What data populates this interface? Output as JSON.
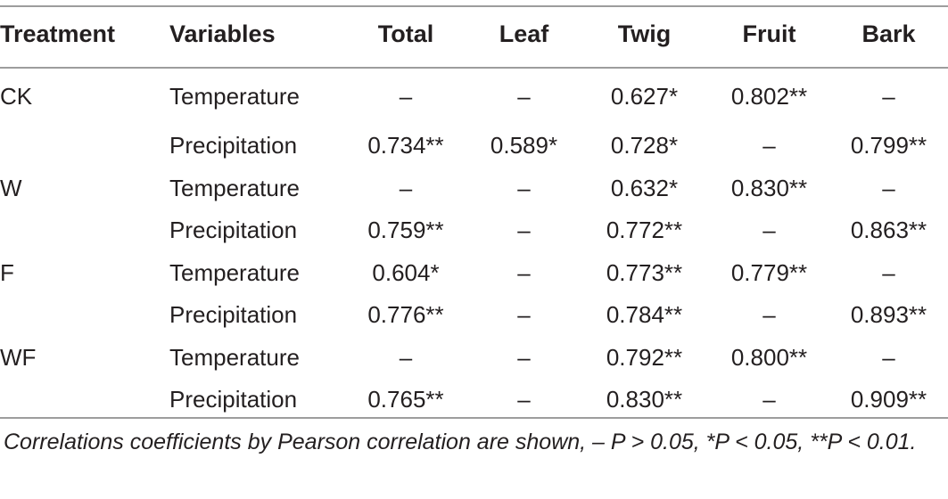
{
  "table": {
    "headers": [
      "Treatment",
      "Variables",
      "Total",
      "Leaf",
      "Twig",
      "Fruit",
      "Bark"
    ],
    "rows": [
      [
        "CK",
        "Temperature",
        "–",
        "–",
        "0.627*",
        "0.802**",
        "–"
      ],
      [
        "",
        "Precipitation",
        "0.734**",
        "0.589*",
        "0.728*",
        "–",
        "0.799**"
      ],
      [
        "W",
        "Temperature",
        "–",
        "–",
        "0.632*",
        "0.830**",
        "–"
      ],
      [
        "",
        "Precipitation",
        "0.759**",
        "–",
        "0.772**",
        "–",
        "0.863**"
      ],
      [
        "F",
        "Temperature",
        "0.604*",
        "–",
        "0.773**",
        "0.779**",
        "–"
      ],
      [
        "",
        "Precipitation",
        "0.776**",
        "–",
        "0.784**",
        "–",
        "0.893**"
      ],
      [
        "WF",
        "Temperature",
        "–",
        "–",
        "0.792**",
        "0.800**",
        "–"
      ],
      [
        "",
        "Precipitation",
        "0.765**",
        "–",
        "0.830**",
        "–",
        "0.909**"
      ]
    ]
  },
  "footnote": "Correlations coefficients by Pearson correlation are shown, – P > 0.05, *P < 0.05, **P < 0.01."
}
